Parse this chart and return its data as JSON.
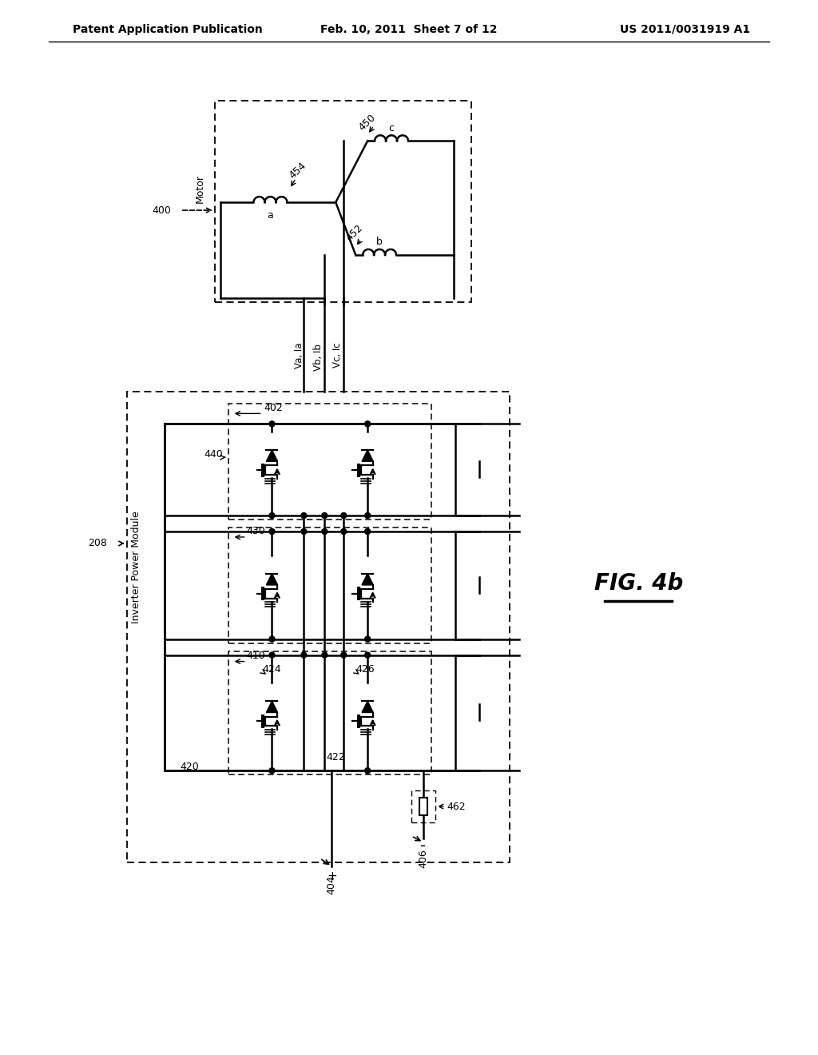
{
  "header_left": "Patent Application Publication",
  "header_center": "Feb. 10, 2011  Sheet 7 of 12",
  "header_right": "US 2011/0031919 A1",
  "fig_label": "FIG. 4b",
  "bg_color": "#ffffff"
}
